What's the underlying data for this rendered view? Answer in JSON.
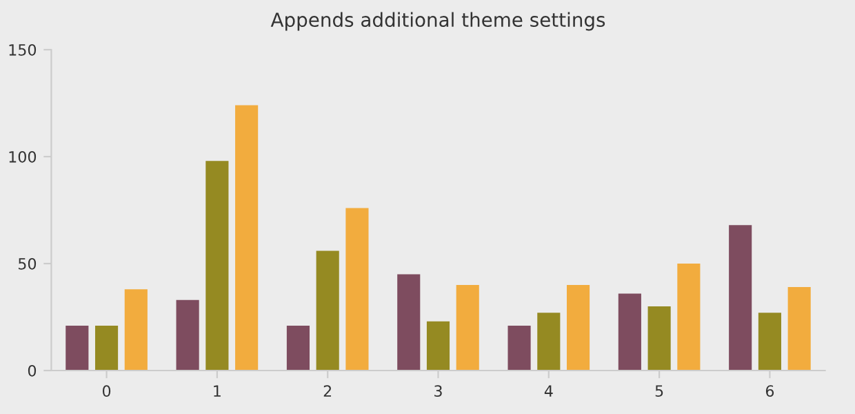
{
  "chart_data": {
    "type": "bar",
    "title": "Appends additional theme settings",
    "categories": [
      "0",
      "1",
      "2",
      "3",
      "4",
      "5",
      "6"
    ],
    "series": [
      {
        "color": "#7e4c5f",
        "values": [
          21,
          33,
          21,
          45,
          21,
          36,
          68
        ]
      },
      {
        "color": "#958a22",
        "values": [
          21,
          98,
          56,
          23,
          27,
          30,
          27
        ]
      },
      {
        "color": "#f2ac3e",
        "values": [
          38,
          124,
          76,
          40,
          40,
          50,
          39
        ]
      }
    ],
    "ylim": [
      0,
      150
    ],
    "yticks": [
      0,
      50,
      100,
      150
    ],
    "grid": false,
    "legend": false
  }
}
